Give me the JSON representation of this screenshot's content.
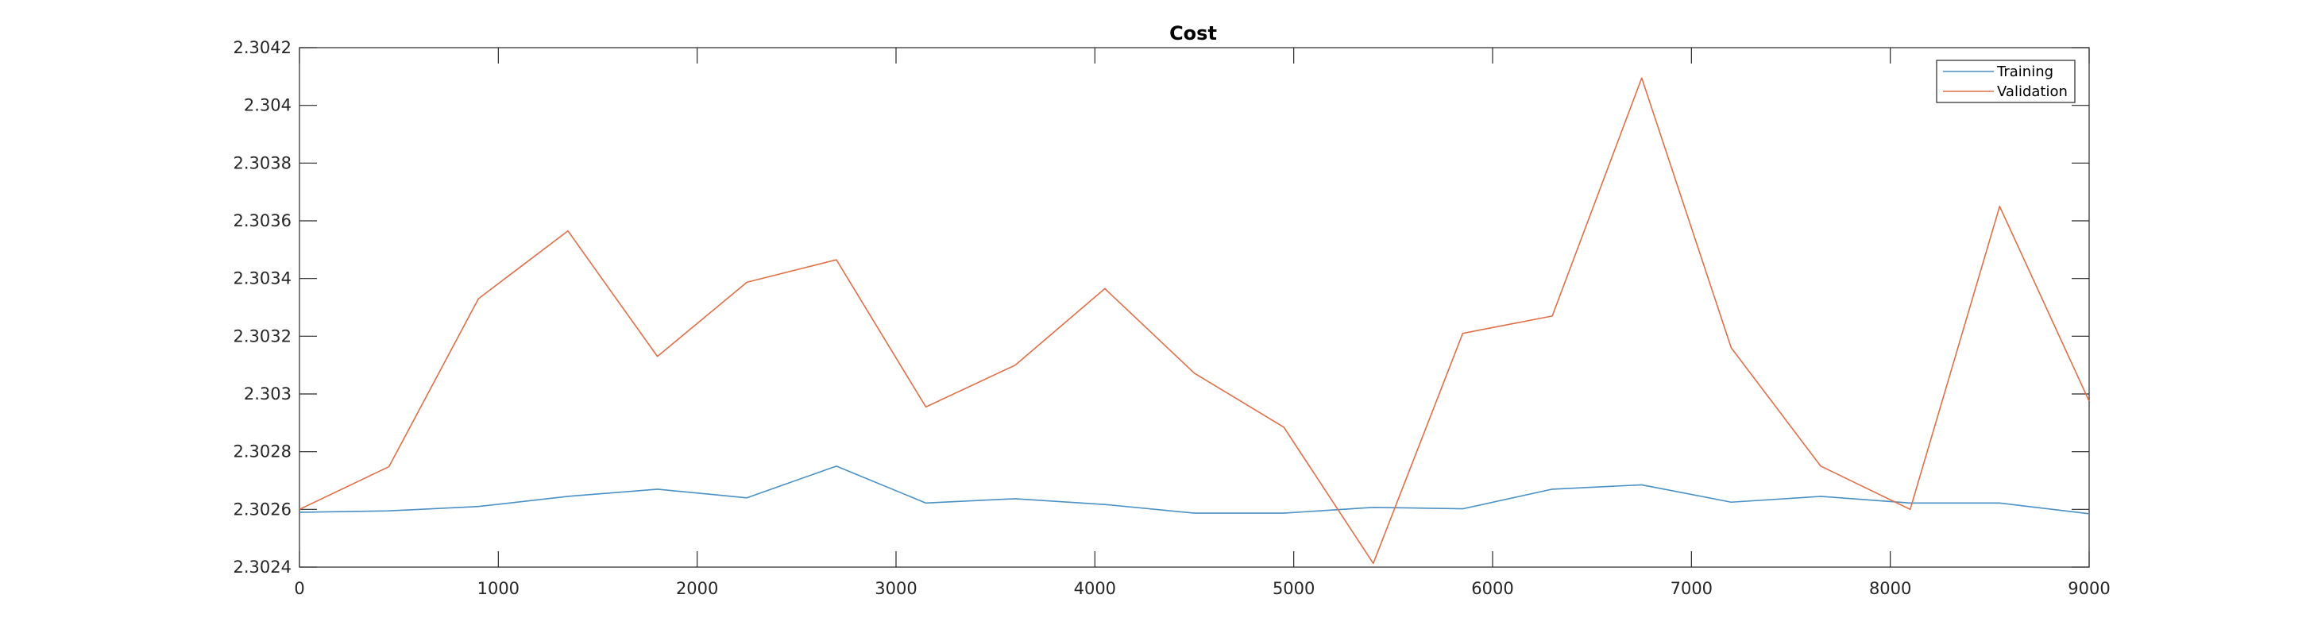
{
  "chart_data": {
    "type": "line",
    "title": "Cost",
    "xlabel": "",
    "ylabel": "",
    "xlim": [
      0,
      9000
    ],
    "ylim": [
      2.3024,
      2.3042
    ],
    "x_ticks": [
      0,
      1000,
      2000,
      3000,
      4000,
      5000,
      6000,
      7000,
      8000,
      9000
    ],
    "x_tick_labels": [
      "0",
      "1000",
      "2000",
      "3000",
      "4000",
      "5000",
      "6000",
      "7000",
      "8000",
      "9000"
    ],
    "y_ticks": [
      2.3024,
      2.3026,
      2.3028,
      2.303,
      2.3032,
      2.3034,
      2.3036,
      2.3038,
      2.304,
      2.3042
    ],
    "y_tick_labels": [
      "2.3024",
      "2.3026",
      "2.3028",
      "2.303",
      "2.3032",
      "2.3034",
      "2.3036",
      "2.3038",
      "2.304",
      "2.3042"
    ],
    "grid": false,
    "legend_position": "top-right",
    "x": [
      0,
      450,
      900,
      1350,
      1800,
      2250,
      2700,
      3150,
      3600,
      4050,
      4500,
      4950,
      5400,
      5850,
      6300,
      6750,
      7200,
      7650,
      8100,
      8550,
      9000
    ],
    "series": [
      {
        "name": "Training",
        "color": "#4a90c4",
        "values": [
          2.30259,
          2.302595,
          2.30261,
          2.302645,
          2.30267,
          2.30264,
          2.30275,
          2.302622,
          2.302637,
          2.302617,
          2.302587,
          2.302587,
          2.302607,
          2.302602,
          2.30267,
          2.302685,
          2.302625,
          2.302645,
          2.302622,
          2.302622,
          2.302585
        ]
      },
      {
        "name": "Validation",
        "color": "#e06f48",
        "values": [
          2.3026,
          2.302748,
          2.30333,
          2.303565,
          2.30313,
          2.303387,
          2.303465,
          2.302955,
          2.3031,
          2.303365,
          2.303072,
          2.302885,
          2.302413,
          2.30321,
          2.30327,
          2.304095,
          2.30316,
          2.30275,
          2.3026,
          2.30365,
          2.302975
        ]
      }
    ]
  }
}
